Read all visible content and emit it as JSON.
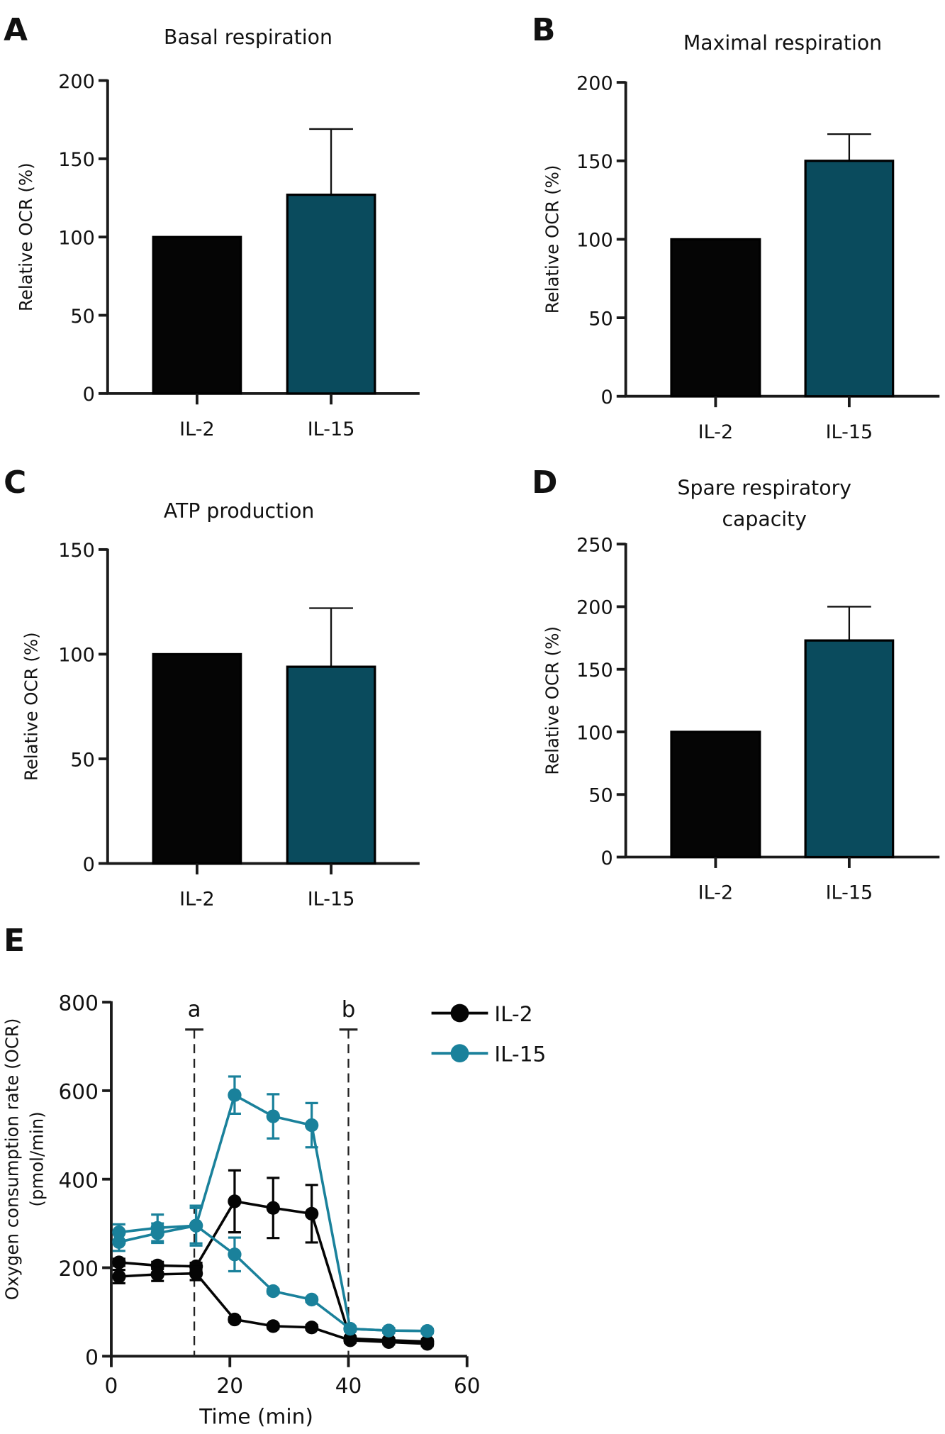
{
  "colors": {
    "il2": "#050505",
    "il15_bar": "#0a4b5d",
    "il15_line": "#1a819b",
    "axis": "#1a1a1a"
  },
  "chart_data": [
    {
      "panel": "A",
      "type": "bar",
      "title": "Basal respiration",
      "title_lines": [
        "Basal respiration"
      ],
      "ylabel": "Relative OCR (%)",
      "categories": [
        "IL-2",
        "IL-15"
      ],
      "values": [
        100,
        127
      ],
      "error_upper": [
        null,
        169
      ],
      "ylim": [
        0,
        200
      ],
      "yticks": [
        0,
        50,
        100,
        150,
        200
      ]
    },
    {
      "panel": "B",
      "type": "bar",
      "title": "Maximal respiration",
      "title_lines": [
        "Maximal respiration"
      ],
      "ylabel": "Relative OCR (%)",
      "categories": [
        "IL-2",
        "IL-15"
      ],
      "values": [
        100,
        150
      ],
      "error_upper": [
        null,
        167
      ],
      "ylim": [
        0,
        200
      ],
      "yticks": [
        0,
        50,
        100,
        150,
        200
      ]
    },
    {
      "panel": "C",
      "type": "bar",
      "title": "ATP production",
      "title_lines": [
        "ATP production"
      ],
      "ylabel": "Relative OCR (%)",
      "categories": [
        "IL-2",
        "IL-15"
      ],
      "values": [
        100,
        94
      ],
      "error_upper": [
        null,
        122
      ],
      "ylim": [
        0,
        150
      ],
      "yticks": [
        0,
        50,
        100,
        150
      ]
    },
    {
      "panel": "D",
      "type": "bar",
      "title": "Spare respiratory capacity",
      "title_lines": [
        "Spare respiratory",
        "capacity"
      ],
      "ylabel": "Relative OCR (%)",
      "categories": [
        "IL-2",
        "IL-15"
      ],
      "values": [
        100,
        173
      ],
      "error_upper": [
        null,
        200
      ],
      "ylim": [
        0,
        250
      ],
      "yticks": [
        0,
        50,
        100,
        150,
        200,
        250
      ]
    },
    {
      "panel": "E",
      "type": "line",
      "xlabel": "Time (min)",
      "ylabel_lines": [
        "Oxygen consumption rate (OCR)",
        "(pmol/min)"
      ],
      "xlim": [
        0,
        60
      ],
      "ylim": [
        0,
        800
      ],
      "xticks": [
        0,
        20,
        40,
        60
      ],
      "yticks": [
        0,
        200,
        400,
        600,
        800
      ],
      "x": [
        1.3,
        7.8,
        14.3,
        20.8,
        27.3,
        33.8,
        40.3,
        46.8,
        53.3
      ],
      "injections": [
        {
          "label": "a",
          "x": 14
        },
        {
          "label": "b",
          "x": 40
        }
      ],
      "legend": [
        "IL-2",
        "IL-15"
      ],
      "legend_position": "top-right",
      "series": [
        {
          "name": "IL-2",
          "trace": 1,
          "values": [
            212,
            205,
            203,
            350,
            335,
            322,
            40,
            36,
            33
          ],
          "errors": [
            8,
            8,
            8,
            70,
            68,
            65,
            5,
            5,
            5
          ]
        },
        {
          "name": "IL-2",
          "trace": 2,
          "values": [
            180,
            185,
            187,
            83,
            68,
            65,
            36,
            32,
            28
          ],
          "errors": [
            15,
            15,
            15,
            5,
            5,
            5,
            5,
            5,
            5
          ]
        },
        {
          "name": "IL-15",
          "trace": 1,
          "values": [
            258,
            278,
            295,
            590,
            542,
            522,
            62,
            58,
            57
          ],
          "errors": [
            20,
            22,
            45,
            42,
            50,
            50,
            5,
            5,
            5
          ]
        },
        {
          "name": "IL-15",
          "trace": 2,
          "values": [
            280,
            290,
            295,
            230,
            147,
            128,
            62,
            58,
            57
          ],
          "errors": [
            18,
            30,
            40,
            38,
            5,
            5,
            5,
            5,
            5
          ]
        }
      ]
    }
  ]
}
